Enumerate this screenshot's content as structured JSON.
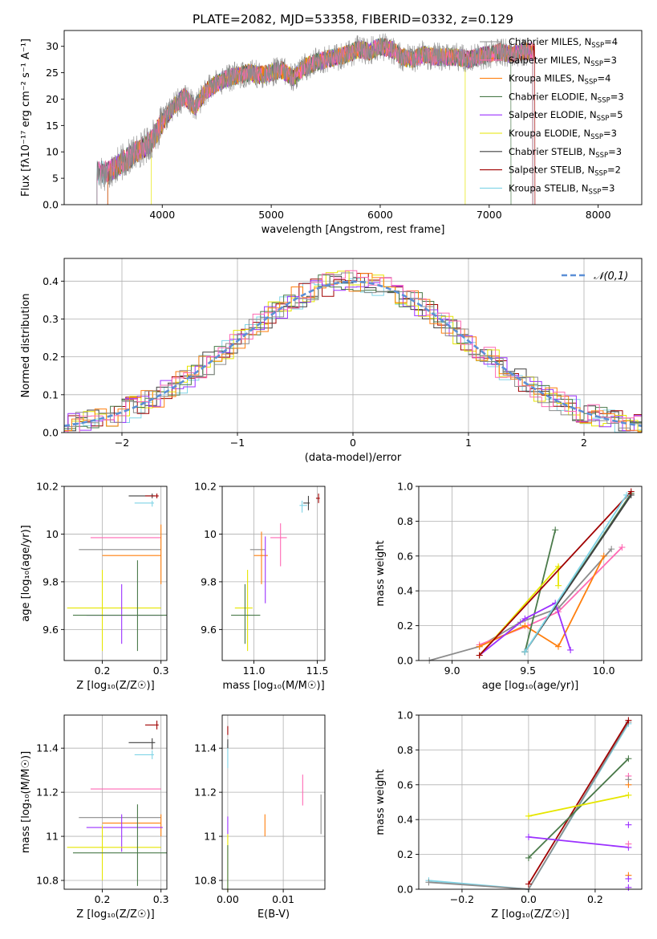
{
  "figure": {
    "title": "PLATE=2082, MJD=53358, FIBERID=0332, z=0.129"
  },
  "colors": {
    "models": [
      "#8c8c8c",
      "#ff69b4",
      "#ff7f0e",
      "#4a7a4a",
      "#9b30ff",
      "#e6e600",
      "#404040",
      "#a00000",
      "#7fd4e6"
    ],
    "gaussian": "#5b8fd6",
    "grid": "#b0b0b0"
  },
  "chart_data": [
    {
      "id": "spectrum",
      "type": "line",
      "xlabel": "wavelength [Angstrom, rest frame]",
      "ylabel": "Flux [fλ10⁻¹⁷ erg cm⁻² s⁻¹ A⁻¹]",
      "xlim": [
        3100,
        8400
      ],
      "ylim": [
        0,
        33
      ],
      "xticks": [
        4000,
        5000,
        6000,
        7000,
        8000
      ],
      "yticks": [
        0,
        5,
        10,
        15,
        20,
        25,
        30
      ],
      "grid": false,
      "legend_position": "top-right",
      "legend": [
        "Chabrier MILES, N_SSP=4",
        "Salpeter MILES, N_SSP=3",
        "Kroupa MILES, N_SSP=4",
        "Chabrier ELODIE, N_SSP=3",
        "Salpeter ELODIE, N_SSP=5",
        "Kroupa ELODIE, N_SSP=3",
        "Chabrier STELIB, N_SSP=3",
        "Salpeter STELIB, N_SSP=2",
        "Kroupa STELIB, N_SSP=3"
      ],
      "wavelength": [
        3400,
        3500,
        3600,
        3700,
        3800,
        3900,
        4000,
        4100,
        4200,
        4300,
        4400,
        4500,
        4600,
        4700,
        4800,
        4900,
        5000,
        5100,
        5200,
        5300,
        5400,
        5500,
        5600,
        5700,
        5800,
        5900,
        6000,
        6100,
        6200,
        6300,
        6400,
        6500,
        6600,
        6700,
        6800,
        6900,
        7000,
        7100,
        7200,
        7300,
        7400
      ],
      "flux": [
        6.0,
        6.2,
        7.5,
        9.0,
        10.5,
        12.0,
        15.5,
        18.5,
        20.5,
        18.5,
        21.5,
        23.0,
        24.0,
        24.5,
        25.0,
        24.5,
        25.0,
        25.5,
        24.0,
        26.0,
        27.0,
        27.5,
        28.0,
        28.5,
        29.5,
        29.0,
        30.0,
        29.5,
        28.0,
        27.5,
        28.5,
        28.0,
        28.0,
        28.0,
        27.5,
        28.0,
        28.5,
        29.0,
        28.5,
        29.0,
        29.0
      ],
      "model_ranges": [
        [
          3400,
          7400
        ],
        [
          3400,
          7400
        ],
        [
          3500,
          7400
        ],
        [
          3500,
          7200
        ],
        [
          3500,
          7400
        ],
        [
          3900,
          6780
        ],
        [
          3400,
          7400
        ],
        [
          3500,
          7420
        ],
        [
          3400,
          7400
        ]
      ]
    },
    {
      "id": "residuals",
      "type": "line",
      "xlabel": "(data-model)/error",
      "ylabel": "Normed distribution",
      "xlim": [
        -2.5,
        2.5
      ],
      "ylim": [
        0,
        0.46
      ],
      "xticks": [
        -2,
        -1,
        0,
        1,
        2
      ],
      "xtick_labels": [
        "−2",
        "−1",
        "0",
        "1",
        "2"
      ],
      "yticks": [
        0.0,
        0.1,
        0.2,
        0.3,
        0.4
      ],
      "ytick_labels": [
        "0.0",
        "0.1",
        "0.2",
        "0.3",
        "0.4"
      ],
      "grid": true,
      "legend_position": "top-right",
      "legend": [
        "𝒩(0,1)"
      ],
      "gaussian": {
        "mean": 0,
        "sigma": 1
      }
    },
    {
      "id": "age-vs-Z",
      "type": "scatter",
      "xlabel": "Z [log₁₀(Z/Z☉)]",
      "ylabel": "age  [log₁₀(age/yr)]",
      "xlim": [
        0.135,
        0.31
      ],
      "ylim": [
        9.47,
        10.2
      ],
      "xticks": [
        0.2,
        0.3
      ],
      "yticks": [
        9.6,
        9.8,
        10.0,
        10.2
      ],
      "grid": true,
      "points": [
        {
          "x": 0.285,
          "y": 10.16,
          "xerr": [
            0.04,
            0.005
          ],
          "yerr": [
            0.01,
            0.01
          ],
          "c": 6
        },
        {
          "x": 0.293,
          "y": 10.16,
          "xerr": [
            0.02,
            0.003
          ],
          "yerr": [
            0.01,
            0.01
          ],
          "c": 7
        },
        {
          "x": 0.285,
          "y": 10.13,
          "xerr": [
            0.03,
            0.003
          ],
          "yerr": [
            0.015,
            0.01
          ],
          "c": 8
        },
        {
          "x": 0.3,
          "y": 9.985,
          "xerr": [
            0.12,
            0.0
          ],
          "yerr": [
            0.0,
            0.0
          ],
          "c": 1
        },
        {
          "x": 0.3,
          "y": 9.935,
          "xerr": [
            0.14,
            0.0
          ],
          "yerr": [
            0.0,
            0.0
          ],
          "c": 0
        },
        {
          "x": 0.3,
          "y": 9.91,
          "xerr": [
            0.1,
            0.0
          ],
          "yerr": [
            0.12,
            0.13
          ],
          "c": 2
        },
        {
          "x": 0.2,
          "y": 9.69,
          "xerr": [
            0.06,
            0.1
          ],
          "yerr": [
            0.18,
            0.16
          ],
          "c": 5
        },
        {
          "x": 0.233,
          "y": 9.66,
          "xerr": [
            0.06,
            0.07
          ],
          "yerr": [
            0.12,
            0.13
          ],
          "c": 4
        },
        {
          "x": 0.26,
          "y": 9.66,
          "xerr": [
            0.11,
            0.05
          ],
          "yerr": [
            0.15,
            0.23
          ],
          "c": 3
        }
      ]
    },
    {
      "id": "age-vs-mass",
      "type": "scatter",
      "xlabel": "mass [log₁₀(M/M☉)]",
      "ylabel": "",
      "xlim": [
        10.75,
        11.56
      ],
      "ylim": [
        9.47,
        10.2
      ],
      "xticks": [
        11.0,
        11.5
      ],
      "yticks": [
        9.6,
        9.8,
        10.0,
        10.2
      ],
      "grid": true,
      "points": [
        {
          "x": 11.43,
          "y": 10.13,
          "xerr": [
            0.04,
            0.01
          ],
          "yerr": [
            0.03,
            0.03
          ],
          "c": 6
        },
        {
          "x": 11.51,
          "y": 10.15,
          "xerr": [
            0.02,
            0.01
          ],
          "yerr": [
            0.02,
            0.02
          ],
          "c": 7
        },
        {
          "x": 11.38,
          "y": 10.12,
          "xerr": [
            0.02,
            0.04
          ],
          "yerr": [
            0.03,
            0.02
          ],
          "c": 8
        },
        {
          "x": 11.21,
          "y": 9.985,
          "xerr": [
            0.08,
            0.05
          ],
          "yerr": [
            0.12,
            0.06
          ],
          "c": 1
        },
        {
          "x": 11.09,
          "y": 9.935,
          "xerr": [
            0.12,
            0.0
          ],
          "yerr": [
            0.0,
            0.0
          ],
          "c": 0
        },
        {
          "x": 11.06,
          "y": 9.91,
          "xerr": [
            0.06,
            0.05
          ],
          "yerr": [
            0.12,
            0.1
          ],
          "c": 2
        },
        {
          "x": 10.95,
          "y": 9.69,
          "xerr": [
            0.1,
            0.04
          ],
          "yerr": [
            0.18,
            0.16
          ],
          "c": 5
        },
        {
          "x": 10.93,
          "y": 9.66,
          "xerr": [
            0.11,
            0.12
          ],
          "yerr": [
            0.12,
            0.13
          ],
          "c": 3
        },
        {
          "x": 11.09,
          "y": 9.85,
          "xerr": [
            0.0,
            0.0
          ],
          "yerr": [
            0.14,
            0.14
          ],
          "c": 4
        }
      ]
    },
    {
      "id": "massweight-vs-age",
      "type": "line",
      "xlabel": "age  [log₁₀(age/yr)]",
      "ylabel": "mass weight",
      "xlim": [
        8.78,
        10.25
      ],
      "ylim": [
        0,
        1
      ],
      "xticks": [
        9.0,
        9.5,
        10.0
      ],
      "yticks": [
        0.0,
        0.2,
        0.4,
        0.6,
        0.8,
        1.0
      ],
      "grid": true,
      "series": [
        {
          "c": 0,
          "x": [
            8.85,
            9.18,
            9.45,
            9.7,
            10.05
          ],
          "y": [
            0.0,
            0.08,
            0.22,
            0.3,
            0.64
          ]
        },
        {
          "c": 1,
          "x": [
            9.18,
            9.5,
            9.7,
            10.12
          ],
          "y": [
            0.09,
            0.2,
            0.28,
            0.65
          ]
        },
        {
          "c": 2,
          "x": [
            9.18,
            9.48,
            9.7,
            10.0
          ],
          "y": [
            0.08,
            0.2,
            0.08,
            0.6
          ]
        },
        {
          "c": 3,
          "x": [
            9.48,
            9.68,
            9.48,
            10.18
          ],
          "y": [
            0.05,
            0.75,
            0.05,
            0.96
          ]
        },
        {
          "c": 4,
          "x": [
            9.18,
            9.48,
            9.68,
            9.78
          ],
          "y": [
            0.03,
            0.24,
            0.33,
            0.06
          ]
        },
        {
          "c": 5,
          "x": [
            9.18,
            9.7,
            9.7
          ],
          "y": [
            0.03,
            0.54,
            0.43
          ]
        },
        {
          "c": 6,
          "x": [
            9.48,
            10.18
          ],
          "y": [
            0.05,
            0.95
          ]
        },
        {
          "c": 7,
          "x": [
            9.18,
            10.18
          ],
          "y": [
            0.03,
            0.97
          ]
        },
        {
          "c": 8,
          "x": [
            9.48,
            10.15
          ],
          "y": [
            0.05,
            0.95
          ]
        }
      ]
    },
    {
      "id": "mass-vs-Z",
      "type": "scatter",
      "xlabel": "Z [log₁₀(Z/Z☉)]",
      "ylabel": "mass [log₁₀(M/M☉)]",
      "xlim": [
        0.135,
        0.31
      ],
      "ylim": [
        10.76,
        11.55
      ],
      "xticks": [
        0.2,
        0.3
      ],
      "yticks": [
        10.8,
        11.0,
        11.2,
        11.4
      ],
      "grid": true,
      "points": [
        {
          "x": 0.293,
          "y": 11.505,
          "xerr": [
            0.02,
            0.003
          ],
          "yerr": [
            0.02,
            0.02
          ],
          "c": 7
        },
        {
          "x": 0.285,
          "y": 11.425,
          "xerr": [
            0.04,
            0.005
          ],
          "yerr": [
            0.03,
            0.02
          ],
          "c": 6
        },
        {
          "x": 0.285,
          "y": 11.37,
          "xerr": [
            0.03,
            0.003
          ],
          "yerr": [
            0.02,
            0.02
          ],
          "c": 8
        },
        {
          "x": 0.3,
          "y": 11.215,
          "xerr": [
            0.12,
            0.0
          ],
          "yerr": [
            0.0,
            0.0
          ],
          "c": 1
        },
        {
          "x": 0.3,
          "y": 11.085,
          "xerr": [
            0.14,
            0.0
          ],
          "yerr": [
            0.0,
            0.0
          ],
          "c": 0
        },
        {
          "x": 0.3,
          "y": 11.06,
          "xerr": [
            0.1,
            0.0
          ],
          "yerr": [
            0.06,
            0.04
          ],
          "c": 2
        },
        {
          "x": 0.233,
          "y": 11.04,
          "xerr": [
            0.06,
            0.07
          ],
          "yerr": [
            0.11,
            0.06
          ],
          "c": 4
        },
        {
          "x": 0.2,
          "y": 10.95,
          "xerr": [
            0.06,
            0.1
          ],
          "yerr": [
            0.15,
            0.1
          ],
          "c": 5
        },
        {
          "x": 0.26,
          "y": 10.925,
          "xerr": [
            0.11,
            0.05
          ],
          "yerr": [
            0.15,
            0.22
          ],
          "c": 3
        }
      ]
    },
    {
      "id": "mass-vs-EBV",
      "type": "scatter",
      "xlabel": "E(B-V)",
      "ylabel": "",
      "xlim": [
        -0.001,
        0.0175
      ],
      "ylim": [
        10.76,
        11.55
      ],
      "xticks": [
        0.0,
        0.01
      ],
      "xtick_labels": [
        "0.00",
        "0.01"
      ],
      "yticks": [
        10.8,
        11.0,
        11.2,
        11.4
      ],
      "grid": true,
      "points": [
        {
          "x": 0.0,
          "y": 11.48,
          "xerr": [
            0,
            0
          ],
          "yerr": [
            0.02,
            0.02
          ],
          "c": 7
        },
        {
          "x": 0.0,
          "y": 11.37,
          "xerr": [
            0,
            0
          ],
          "yerr": [
            0.06,
            0.05
          ],
          "c": 8
        },
        {
          "x": 0.0,
          "y": 11.42,
          "xerr": [
            0,
            0
          ],
          "yerr": [
            0.02,
            0.02
          ],
          "c": 6
        },
        {
          "x": 0.0,
          "y": 11.05,
          "xerr": [
            0,
            0
          ],
          "yerr": [
            0.04,
            0.04
          ],
          "c": 4
        },
        {
          "x": 0.0,
          "y": 10.88,
          "xerr": [
            0,
            0
          ],
          "yerr": [
            0.13,
            0.13
          ],
          "c": 5
        },
        {
          "x": 0.0,
          "y": 10.86,
          "xerr": [
            0,
            0
          ],
          "yerr": [
            0.1,
            0.1
          ],
          "c": 3
        },
        {
          "x": 0.0067,
          "y": 11.05,
          "xerr": [
            0,
            0
          ],
          "yerr": [
            0.05,
            0.05
          ],
          "c": 2
        },
        {
          "x": 0.0135,
          "y": 11.21,
          "xerr": [
            0,
            0
          ],
          "yerr": [
            0.07,
            0.07
          ],
          "c": 1
        },
        {
          "x": 0.0168,
          "y": 11.1,
          "xerr": [
            0,
            0
          ],
          "yerr": [
            0.09,
            0.09
          ],
          "c": 0
        }
      ]
    },
    {
      "id": "massweight-vs-Z",
      "type": "line",
      "xlabel": "Z [log₁₀(Z/Z☉)]",
      "ylabel": "mass weight",
      "xlim": [
        -0.33,
        0.34
      ],
      "ylim": [
        0,
        1
      ],
      "xticks": [
        -0.2,
        0.0,
        0.2
      ],
      "xtick_labels": [
        "−0.2",
        "0.0",
        "0.2"
      ],
      "yticks": [
        0.0,
        0.2,
        0.4,
        0.6,
        0.8,
        1.0
      ],
      "grid": true,
      "series": [
        {
          "c": 8,
          "x": [
            -0.3,
            0.0,
            0.3
          ],
          "y": [
            0.05,
            0.0,
            0.95
          ]
        },
        {
          "c": 0,
          "x": [
            -0.3,
            0.0,
            0.3
          ],
          "y": [
            0.04,
            0.0,
            0.96
          ]
        },
        {
          "c": 7,
          "x": [
            0.0,
            0.3
          ],
          "y": [
            0.03,
            0.97
          ]
        },
        {
          "c": 3,
          "x": [
            0.0,
            0.3
          ],
          "y": [
            0.18,
            0.75
          ]
        },
        {
          "c": 5,
          "x": [
            0.0,
            0.3
          ],
          "y": [
            0.42,
            0.54
          ]
        },
        {
          "c": 4,
          "x": [
            0.0,
            0.3
          ],
          "y": [
            0.3,
            0.24
          ]
        }
      ],
      "markers": [
        {
          "c": 1,
          "x": 0.3,
          "y": 0.65
        },
        {
          "c": 1,
          "x": 0.3,
          "y": 0.26
        },
        {
          "c": 2,
          "x": 0.3,
          "y": 0.6
        },
        {
          "c": 2,
          "x": 0.3,
          "y": 0.08
        },
        {
          "c": 4,
          "x": 0.3,
          "y": 0.37
        },
        {
          "c": 4,
          "x": 0.3,
          "y": 0.06
        },
        {
          "c": 4,
          "x": 0.3,
          "y": 0.01
        },
        {
          "c": 0,
          "x": 0.3,
          "y": 0.63
        }
      ]
    }
  ]
}
